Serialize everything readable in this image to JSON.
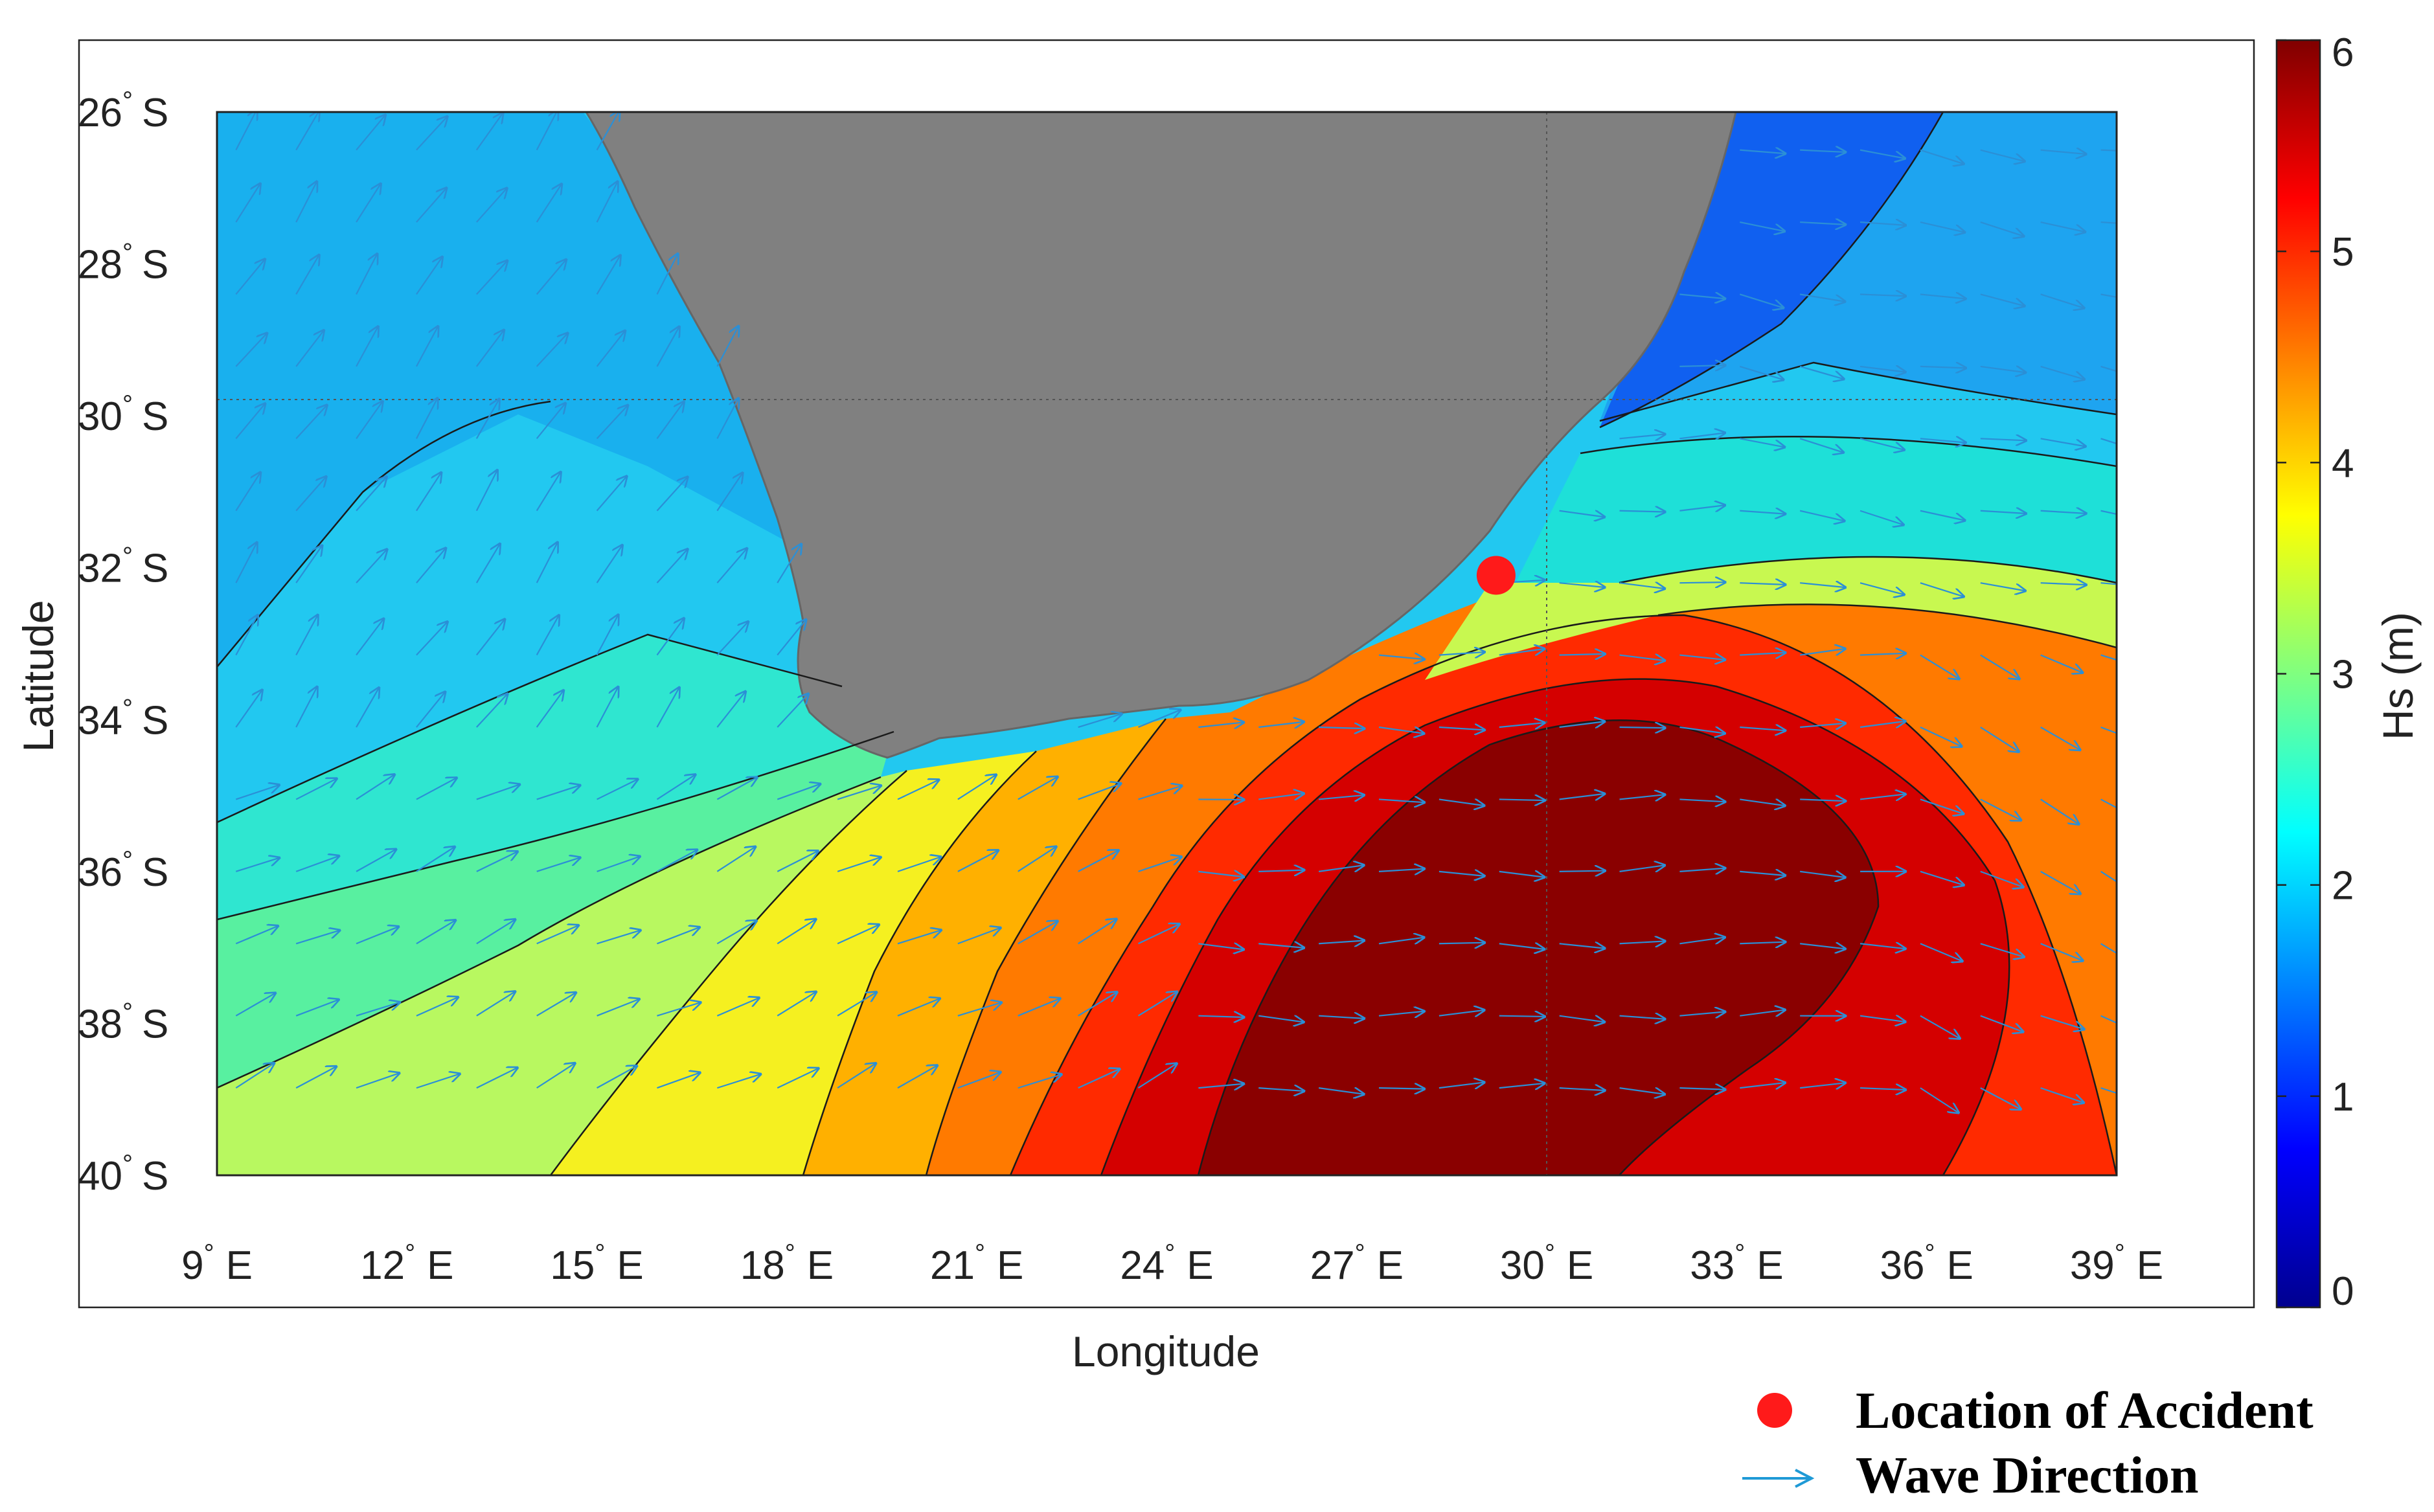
{
  "map": {
    "xlabel": "Longitude",
    "ylabel": "Latitude",
    "lon_range": [
      9,
      39
    ],
    "lat_range": [
      -40,
      -26
    ],
    "lon_ticks": [
      {
        "num": "9",
        "hemi": "E"
      },
      {
        "num": "12",
        "hemi": "E"
      },
      {
        "num": "15",
        "hemi": "E"
      },
      {
        "num": "18",
        "hemi": "E"
      },
      {
        "num": "21",
        "hemi": "E"
      },
      {
        "num": "24",
        "hemi": "E"
      },
      {
        "num": "27",
        "hemi": "E"
      },
      {
        "num": "30",
        "hemi": "E"
      },
      {
        "num": "33",
        "hemi": "E"
      },
      {
        "num": "36",
        "hemi": "E"
      },
      {
        "num": "39",
        "hemi": "E"
      }
    ],
    "lat_ticks": [
      {
        "num": "26",
        "hemi": "S"
      },
      {
        "num": "28",
        "hemi": "S"
      },
      {
        "num": "30",
        "hemi": "S"
      },
      {
        "num": "32",
        "hemi": "S"
      },
      {
        "num": "34",
        "hemi": "S"
      },
      {
        "num": "36",
        "hemi": "S"
      },
      {
        "num": "38",
        "hemi": "S"
      },
      {
        "num": "40",
        "hemi": "S"
      }
    ],
    "degree_symbol": "°",
    "gridlines": {
      "lon": 30,
      "lat": -30,
      "style": "dotted"
    },
    "land_color": "#808080",
    "accident": {
      "lon": 29.2,
      "lat": -32.1,
      "color": "#ff1a1a"
    },
    "arrow_color": "#2b8fd6"
  },
  "colorbar": {
    "label": "Hs (m)",
    "ticks": [
      "0",
      "1",
      "2",
      "3",
      "4",
      "5",
      "6"
    ],
    "range": [
      0,
      6
    ],
    "colormap": "jet"
  },
  "legend": {
    "accident_label": "Location of Accident",
    "wave_label": "Wave Direction",
    "accident_color": "#ff1a1a",
    "arrow_color": "#1f9ad6"
  }
}
